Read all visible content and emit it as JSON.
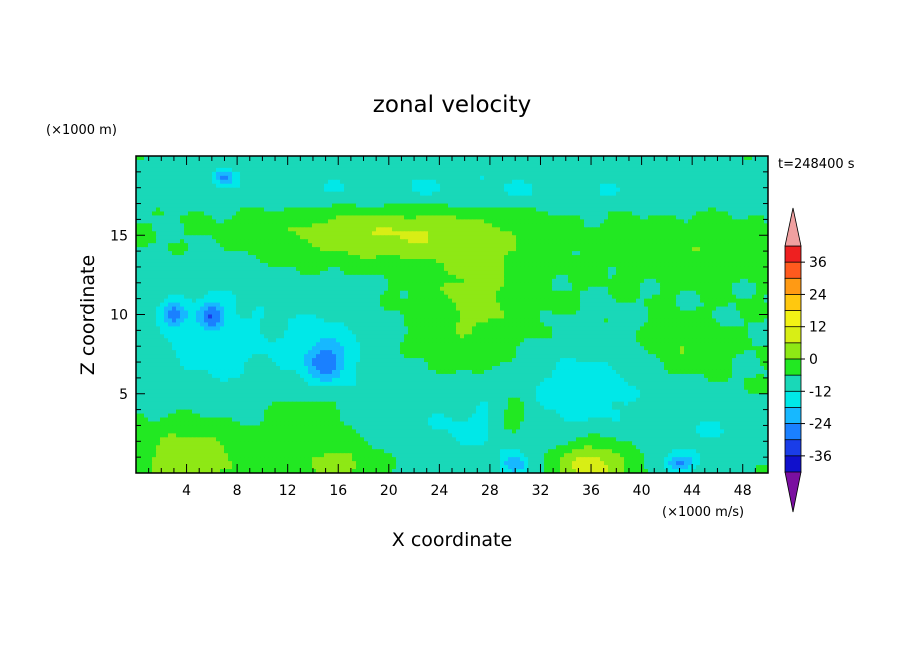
{
  "chart_data": {
    "type": "heatmap",
    "title": "zonal velocity",
    "xlabel": "X coordinate",
    "ylabel": "Z coordinate",
    "x_unit_label": "(×1000 m/s)",
    "y_unit_label": "(×1000 m)",
    "time_label": "t=248400 s",
    "xlim": [
      0,
      50
    ],
    "ylim": [
      0,
      20
    ],
    "x_ticks": [
      4,
      8,
      12,
      16,
      20,
      24,
      28,
      32,
      36,
      40,
      44,
      48
    ],
    "y_ticks": [
      5,
      10,
      15
    ],
    "colorbar": {
      "levels": [
        -42,
        -36,
        -30,
        -24,
        -18,
        -12,
        -6,
        0,
        6,
        12,
        18,
        24,
        30,
        36,
        42
      ],
      "tick_labels": [
        "36",
        "24",
        "12",
        "0",
        "-12",
        "-24",
        "-36"
      ],
      "tick_values": [
        36,
        24,
        12,
        0,
        -12,
        -24,
        -36
      ],
      "extend": "both",
      "colors": [
        "#7a0fa0",
        "#3a1a9a",
        "#1010cc",
        "#1a3de8",
        "#1a80ff",
        "#17b8ff",
        "#00e8e8",
        "#19d8b8",
        "#22e822",
        "#8ee815",
        "#d8ee15",
        "#f2f215",
        "#ffc80f",
        "#ff9a14",
        "#ff5a1e",
        "#ee2020",
        "#f0a0a0"
      ]
    },
    "field": {
      "background": 0,
      "blobs": [
        {
          "x": 25,
          "y": 18.5,
          "rx": 30,
          "ry": 1.4,
          "v": -5
        },
        {
          "x": 25,
          "y": 17.5,
          "rx": 30,
          "ry": 0.8,
          "v": -3
        },
        {
          "x": 20,
          "y": 15,
          "rx": 9,
          "ry": 1.6,
          "v": 12
        },
        {
          "x": 27,
          "y": 11,
          "rx": 4,
          "ry": 4,
          "v": 8
        },
        {
          "x": 44,
          "y": 14,
          "rx": 6,
          "ry": 1.6,
          "v": 5
        },
        {
          "x": 6,
          "y": 8.5,
          "rx": 5,
          "ry": 4,
          "v": -9
        },
        {
          "x": 15,
          "y": 7.5,
          "rx": 4,
          "ry": 3.6,
          "v": -9
        },
        {
          "x": 27,
          "y": 3,
          "rx": 7,
          "ry": 3,
          "v": -7
        },
        {
          "x": 36,
          "y": 5.5,
          "rx": 5,
          "ry": 3,
          "v": -8
        },
        {
          "x": 45,
          "y": 2.5,
          "rx": 5,
          "ry": 2,
          "v": -6
        },
        {
          "x": 43,
          "y": 8,
          "rx": 2.5,
          "ry": 1.5,
          "v": 6
        },
        {
          "x": 30,
          "y": 3.5,
          "rx": 1.5,
          "ry": 1.5,
          "v": 9
        },
        {
          "x": 14,
          "y": 3.5,
          "rx": 3,
          "ry": 2,
          "v": 7
        },
        {
          "x": 4.5,
          "y": 1,
          "rx": 4,
          "ry": 2,
          "v": 11
        },
        {
          "x": 36,
          "y": 0.5,
          "rx": 3,
          "ry": 1.5,
          "v": 16
        },
        {
          "x": 16,
          "y": 0.5,
          "rx": 3,
          "ry": 1.2,
          "v": 9
        },
        {
          "x": 6,
          "y": 10,
          "rx": 1,
          "ry": 0.8,
          "v": -16
        },
        {
          "x": 3,
          "y": 10,
          "rx": 1,
          "ry": 0.8,
          "v": -16
        },
        {
          "x": 15,
          "y": 7,
          "rx": 1.5,
          "ry": 1.2,
          "v": -14
        },
        {
          "x": 7,
          "y": 18.7,
          "rx": 0.8,
          "ry": 0.5,
          "v": -16
        },
        {
          "x": 30,
          "y": 0.5,
          "rx": 1,
          "ry": 0.7,
          "v": -15
        },
        {
          "x": 43,
          "y": 0.6,
          "rx": 1.2,
          "ry": 0.6,
          "v": -17
        }
      ]
    }
  }
}
